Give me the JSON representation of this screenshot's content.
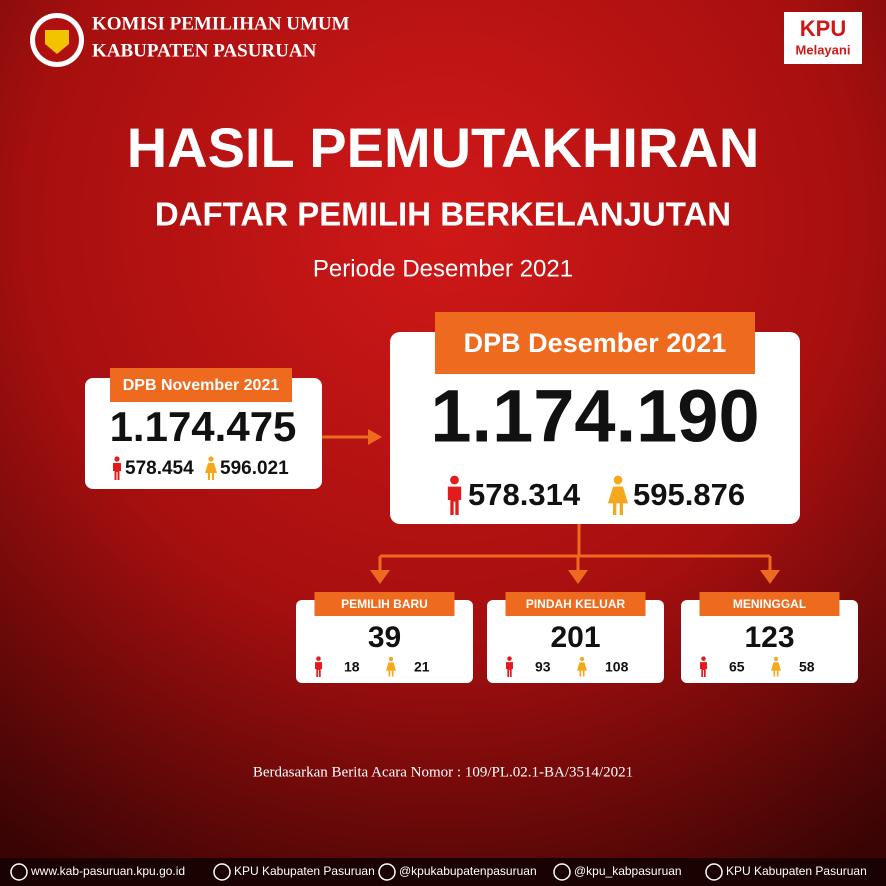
{
  "header": {
    "org_line1": "KOMISI PEMILIHAN UMUM",
    "org_line2": "KABUPATEN PASURUAN",
    "badge_title": "KPU",
    "badge_subtitle": "Melayani"
  },
  "title": "HASIL PEMUTAKHIRAN",
  "subtitle": "DAFTAR PEMILIH BERKELANJUTAN",
  "period": "Periode Desember 2021",
  "previous": {
    "label": "DPB November 2021",
    "total": "1.174.475",
    "male": "578.454",
    "female": "596.021"
  },
  "current": {
    "label": "DPB Desember 2021",
    "total": "1.174.190",
    "male": "578.314",
    "female": "595.876"
  },
  "breakdown": [
    {
      "label": "PEMILIH BARU",
      "total": 39,
      "male": 18,
      "female": 21
    },
    {
      "label": "PINDAH KELUAR",
      "total": 201,
      "male": 93,
      "female": 108
    },
    {
      "label": "MENINGGAL",
      "total": 123,
      "male": 65,
      "female": 58
    }
  ],
  "footnote": "Berdasarkan Berita Acara Nomor : 109/PL.02.1-BA/3514/2021",
  "footer": [
    "www.kab-pasuruan.kpu.go.id",
    "KPU Kabupaten Pasuruan",
    "@kpukabupatenpasuruan",
    "@kpu_kabpasuruan",
    "KPU Kabupaten Pasuruan"
  ]
}
